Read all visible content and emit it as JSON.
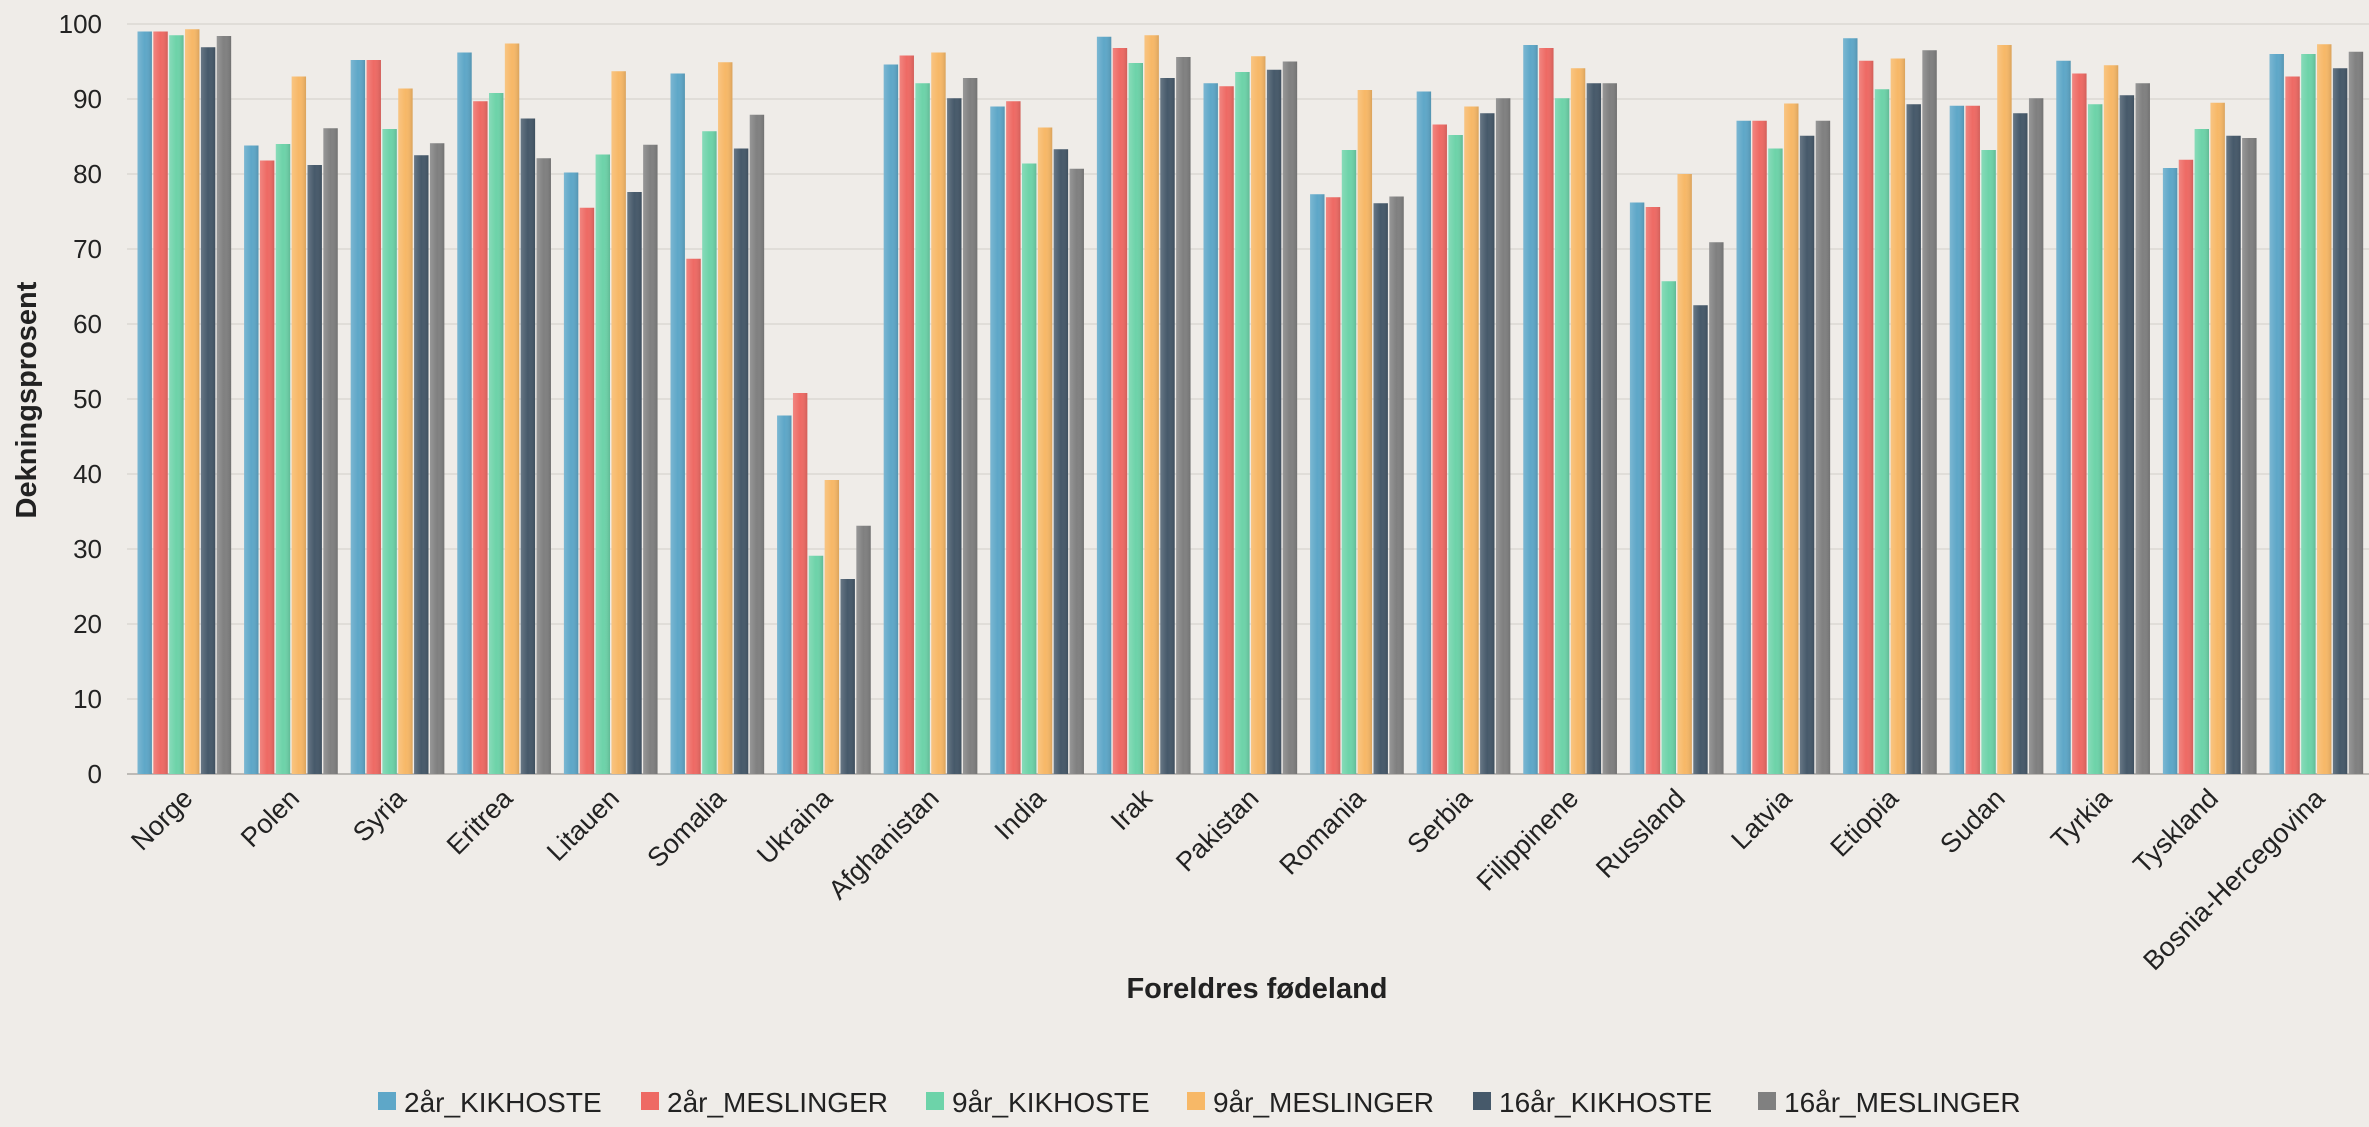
{
  "chart_data": {
    "type": "bar",
    "title": "",
    "xlabel": "Foreldres fødeland",
    "ylabel": "Dekningsprosent",
    "ylim": [
      0,
      100
    ],
    "y_ticks": [
      0,
      10,
      20,
      30,
      40,
      50,
      60,
      70,
      80,
      90,
      100
    ],
    "grid": true,
    "legend_position": "bottom",
    "categories": [
      "Norge",
      "Polen",
      "Syria",
      "Eritrea",
      "Litauen",
      "Somalia",
      "Ukraina",
      "Afghanistan",
      "India",
      "Irak",
      "Pakistan",
      "Romania",
      "Serbia",
      "Filippinene",
      "Russland",
      "Latvia",
      "Etiopia",
      "Sudan",
      "Tyrkia",
      "Tyskland",
      "Bosnia-Hercegovina"
    ],
    "series": [
      {
        "name": "2år_KIKHOSTE",
        "color": "#5ea7c8",
        "values": [
          99.0,
          83.8,
          95.2,
          96.2,
          80.2,
          93.4,
          47.8,
          94.6,
          89.0,
          98.3,
          92.1,
          77.3,
          91.0,
          97.2,
          76.2,
          87.1,
          98.1,
          89.1,
          95.1,
          80.8,
          96.0
        ]
      },
      {
        "name": "2år_MESLINGER",
        "color": "#ee6a64",
        "values": [
          99.0,
          81.8,
          95.2,
          89.7,
          75.5,
          68.7,
          50.8,
          95.8,
          89.7,
          96.8,
          91.7,
          76.9,
          86.6,
          96.8,
          75.6,
          87.1,
          95.1,
          89.1,
          93.4,
          81.9,
          93.0
        ]
      },
      {
        "name": "9år_KIKHOSTE",
        "color": "#6dd3a9",
        "values": [
          98.5,
          84.0,
          86.0,
          90.8,
          82.6,
          85.7,
          29.1,
          92.1,
          81.4,
          94.8,
          93.6,
          83.2,
          85.2,
          90.1,
          65.7,
          83.4,
          91.3,
          83.2,
          89.3,
          86.0,
          96.0
        ]
      },
      {
        "name": "9år_MESLINGER",
        "color": "#f7b867",
        "values": [
          99.3,
          93.0,
          91.4,
          97.4,
          93.7,
          94.9,
          39.2,
          96.2,
          86.2,
          98.5,
          95.7,
          91.2,
          89.0,
          94.1,
          80.0,
          89.4,
          95.4,
          97.2,
          94.5,
          89.5,
          97.3
        ]
      },
      {
        "name": "16år_KIKHOSTE",
        "color": "#46596a",
        "values": [
          96.9,
          81.2,
          82.5,
          87.4,
          77.6,
          83.4,
          26.0,
          90.1,
          83.3,
          92.8,
          93.9,
          76.1,
          88.1,
          92.1,
          62.5,
          85.1,
          89.3,
          88.1,
          90.5,
          85.1,
          94.1
        ]
      },
      {
        "name": "16år_MESLINGER",
        "color": "#808080",
        "values": [
          98.4,
          86.1,
          84.1,
          82.1,
          83.9,
          87.9,
          33.1,
          92.8,
          80.7,
          95.6,
          95.0,
          77.0,
          90.1,
          92.1,
          70.9,
          87.1,
          96.5,
          90.1,
          92.1,
          84.8,
          96.3
        ]
      }
    ]
  }
}
